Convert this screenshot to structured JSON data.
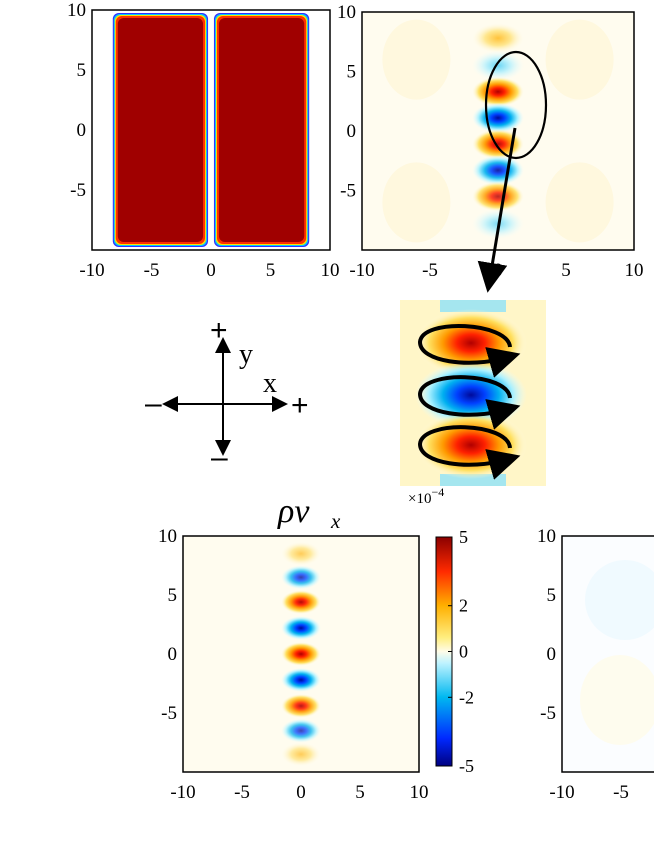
{
  "chart_data": [
    {
      "id": "density-pair",
      "type": "heatmap",
      "title": "",
      "description_of_field": "two dense rectangular slabs separated by a thin gap at x=0",
      "slabs": [
        {
          "x_range": [
            -8,
            -0.5
          ],
          "y_range": [
            -9.5,
            9.5
          ]
        },
        {
          "x_range": [
            0.5,
            8
          ],
          "y_range": [
            -9.5,
            9.5
          ]
        }
      ],
      "xlim": [
        -10,
        10
      ],
      "ylim": [
        -10,
        10
      ],
      "xticks": [
        "-10",
        "-5",
        "0",
        "5",
        "10"
      ],
      "yticks": [
        "10",
        "5",
        "0",
        "-5"
      ]
    },
    {
      "id": "vortex-field",
      "type": "heatmap",
      "title": "",
      "column_x": 0,
      "blobs_y": [
        7.8,
        5.5,
        3.3,
        1.1,
        -1.1,
        -3.3,
        -5.5,
        -7.8
      ],
      "blobs_sign": [
        1,
        -1,
        1,
        -1,
        1,
        -1,
        1,
        -1
      ],
      "blobs_amplitude": [
        0.5,
        0.45,
        0.95,
        1.0,
        0.85,
        0.75,
        0.65,
        0.3
      ],
      "xlim": [
        -10,
        10
      ],
      "ylim": [
        -10,
        10
      ],
      "xticks": [
        "-10",
        "-5",
        "0",
        "5",
        "10"
      ],
      "yticks": [
        "10",
        "5",
        "0",
        "-5"
      ],
      "annotation": "ellipse around central blobs with arrow pointing to zoomed inset"
    },
    {
      "id": "rho-vx",
      "type": "heatmap",
      "title_main": "ρv",
      "title_sub": "x",
      "column_x": 0,
      "blobs_y": [
        8.5,
        6.5,
        4.4,
        2.2,
        0,
        -2.2,
        -4.4,
        -6.5,
        -8.5
      ],
      "blobs_sign": [
        1,
        -1,
        1,
        -1,
        1,
        -1,
        1,
        -1,
        1
      ],
      "blobs_amplitude": [
        0.3,
        0.55,
        0.85,
        1.0,
        1.0,
        1.0,
        0.75,
        0.5,
        0.3
      ],
      "xlim": [
        -10,
        10
      ],
      "ylim": [
        -10,
        10
      ],
      "xticks": [
        "-10",
        "-5",
        "0",
        "5",
        "10"
      ],
      "yticks": [
        "10",
        "5",
        "0",
        "-5"
      ],
      "colorbar": {
        "range": [
          -5,
          5
        ],
        "ticks": [
          "5",
          "2",
          "0",
          "-2",
          "-5"
        ],
        "multiplier_base": "×10",
        "multiplier_exp": "−4"
      }
    },
    {
      "id": "partial-right",
      "type": "heatmap",
      "title": "",
      "xlim": [
        -10,
        10
      ],
      "ylim": [
        -10,
        10
      ],
      "xticks": [
        "-10",
        "-5"
      ],
      "yticks": [
        "10",
        "5",
        "0",
        "-5"
      ]
    }
  ],
  "inset": {
    "blobs_sign": [
      1,
      -1,
      1
    ],
    "annotation": "three circulation arrows (clockwise loops)"
  },
  "axes_legend": {
    "y_label": "y",
    "x_label": "x",
    "plus_sign": "+",
    "minus_sign": "–",
    "plus_color": "#e32222",
    "minus_color": "#1f3fd9"
  },
  "colors": {
    "dark_red": "#8b0000",
    "red": "#e31a1c",
    "orange": "#ff8c00",
    "yellow": "#ffd500",
    "pale": "#fffbe6",
    "cyan": "#00c8f0",
    "blue": "#0050ff",
    "dark_blue": "#000080"
  }
}
